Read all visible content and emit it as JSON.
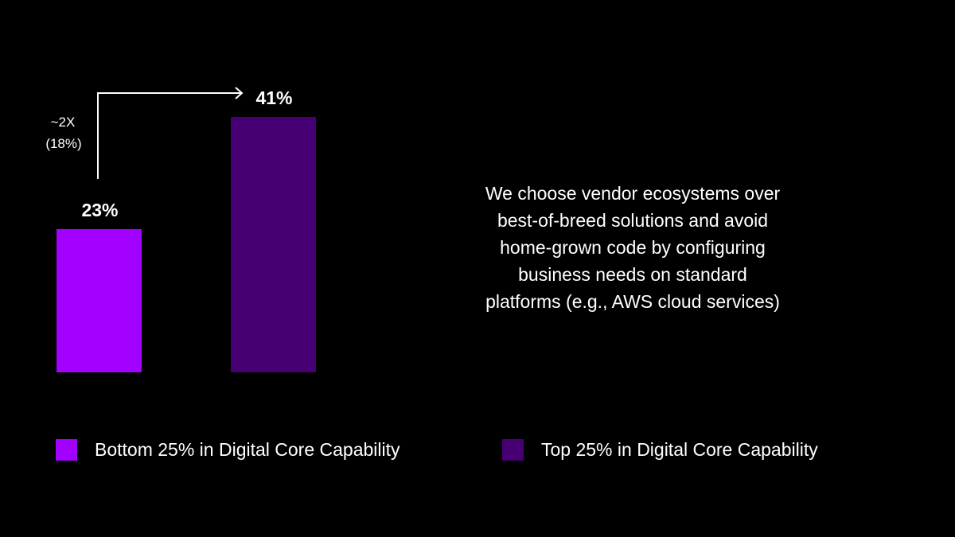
{
  "chart_data": {
    "type": "bar",
    "categories": [
      "Bottom 25% in Digital Core Capability",
      "Top 25% in Digital Core Capability"
    ],
    "values": [
      23,
      41
    ],
    "data_labels": [
      "23%",
      "41%"
    ],
    "colors": [
      "#a200ff",
      "#460073"
    ],
    "ylim": [
      0,
      41
    ],
    "grid": false,
    "legend": "bottom",
    "annotation": {
      "lines": [
        "~2X",
        "(18%)"
      ],
      "from": "Bottom 25% in Digital Core Capability",
      "to": "Top 25% in Digital Core Capability"
    }
  },
  "statement": {
    "lines": [
      "We choose vendor ecosystems over",
      "best-of-breed solutions and avoid",
      "home-grown code by configuring",
      "business needs on standard",
      "platforms (e.g., AWS cloud services)"
    ]
  },
  "legend": {
    "items": [
      {
        "label": "Bottom 25% in Digital Core Capability",
        "color": "#a200ff"
      },
      {
        "label": "Top 25% in Digital Core Capability",
        "color": "#460073"
      }
    ]
  }
}
